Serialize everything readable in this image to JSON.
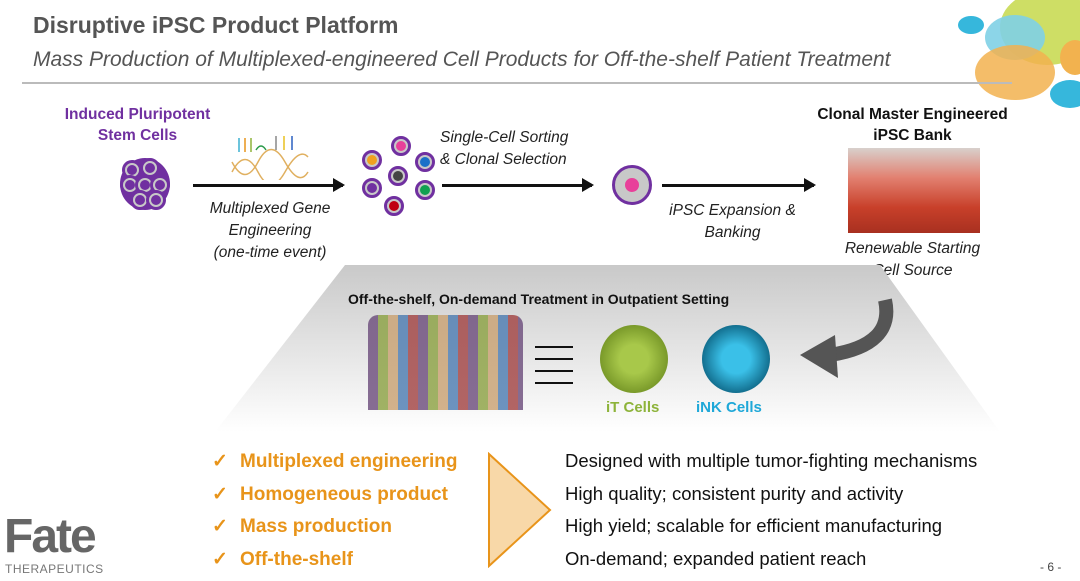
{
  "header": {
    "title": "Disruptive iPSC Product Platform",
    "subtitle": "Mass Production of Multiplexed-engineered Cell Products for Off-the-shelf Patient Treatment"
  },
  "flow": {
    "ipsc_label": [
      "Induced Pluripotent",
      "Stem Cells"
    ],
    "gene_engineering": [
      "Multiplexed Gene",
      "Engineering",
      "(one-time event)"
    ],
    "sorting": [
      "Single-Cell Sorting",
      "& Clonal Selection"
    ],
    "expansion": [
      "iPSC Expansion &",
      "Banking"
    ],
    "bank_label": [
      "Clonal Master Engineered",
      "iPSC Bank"
    ],
    "renewable": [
      "Renewable Starting",
      "Cell Source"
    ]
  },
  "treatment": {
    "title": "Off-the-shelf, On-demand Treatment in Outpatient Setting",
    "it_cells": "iT Cells",
    "ink_cells": "iNK Cells"
  },
  "benefits": [
    {
      "label": "Multiplexed engineering",
      "desc": "Designed with multiple tumor-fighting mechanisms"
    },
    {
      "label": "Homogeneous product",
      "desc": "High quality; consistent purity and activity"
    },
    {
      "label": "Mass production",
      "desc": "High yield; scalable for efficient manufacturing"
    },
    {
      "label": "Off-the-shelf",
      "desc": "On-demand; expanded patient reach"
    }
  ],
  "check_glyph": "✓",
  "logo": {
    "name": "Fate",
    "sub": "THERAPEUTICS"
  },
  "page_number": "- 6 -",
  "colors": {
    "purple": "#7030a0",
    "orange": "#e8941a",
    "it_green": "#8db33a",
    "ink_blue": "#1fa8d8"
  }
}
